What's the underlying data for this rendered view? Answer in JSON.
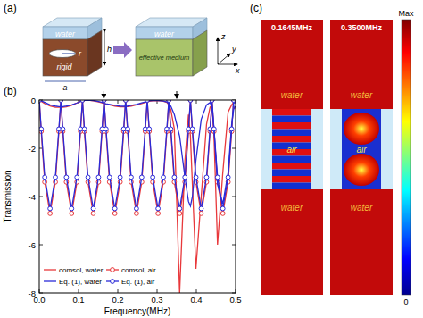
{
  "chart_data": {
    "type": "line",
    "x_label": "Frequency(MHz)",
    "y_label": "Transmission",
    "x": [
      0,
      0.005,
      0.014,
      0.0275,
      0.041,
      0.05,
      0.055,
      0.06,
      0.069,
      0.0825,
      0.096,
      0.105,
      0.11,
      0.115,
      0.124,
      0.1375,
      0.151,
      0.16,
      0.165,
      0.17,
      0.179,
      0.1925,
      0.206,
      0.215,
      0.22,
      0.225,
      0.234,
      0.2475,
      0.261,
      0.27,
      0.275,
      0.28,
      0.289,
      0.3025,
      0.316,
      0.325,
      0.33,
      0.335,
      0.344,
      0.3575,
      0.371,
      0.38,
      0.385,
      0.39,
      0.399,
      0.4125,
      0.426,
      0.435,
      0.44,
      0.445,
      0.454,
      0.4675,
      0.481,
      0.49,
      0.495,
      0.5
    ],
    "series": [
      {
        "name": "comsol, water",
        "color": "#e8383b",
        "line_style": "solid",
        "marker": "none",
        "values": [
          0,
          -0.05,
          -0.15,
          -0.25,
          -0.3,
          -0.3,
          -0.3,
          -0.3,
          -0.28,
          -0.22,
          -0.12,
          -0.05,
          -0.02,
          0,
          0,
          -0.03,
          -0.08,
          -0.12,
          -0.15,
          -0.17,
          -0.2,
          -0.25,
          -0.28,
          -0.28,
          -0.28,
          -0.27,
          -0.25,
          -0.2,
          -0.14,
          -0.1,
          -0.08,
          -0.05,
          -0.03,
          -0.02,
          -0.05,
          -0.1,
          -0.2,
          -0.4,
          -1.2,
          -8,
          -2.5,
          -0.6,
          -1.5,
          -3.5,
          -7,
          -4,
          -1,
          -0.3,
          -0.2,
          -1.5,
          -6,
          -3,
          -0.5,
          -0.2,
          -0.1,
          -0.1
        ]
      },
      {
        "name": "comsol, air",
        "color": "#e8383b",
        "line_style": "solid",
        "marker": "circle",
        "values": [
          0,
          -1.3,
          -3.4,
          -4.7,
          -3.4,
          -1.3,
          0,
          -1.3,
          -3.4,
          -4.7,
          -3.4,
          -1.3,
          0,
          -1.3,
          -3.4,
          -4.7,
          -3.4,
          -1.3,
          0,
          -1.3,
          -3.4,
          -4.7,
          -3.4,
          -1.3,
          0,
          -1.3,
          -3.4,
          -4.7,
          -3.4,
          -1.3,
          0,
          -1.3,
          -3.4,
          -4.7,
          -3.4,
          -1.3,
          0,
          -1.3,
          -3.4,
          -4.7,
          -3.4,
          -1.3,
          0,
          -1.3,
          -3.4,
          -4.7,
          -3.4,
          -1.3,
          0,
          -1.3,
          -3.4,
          -4.7,
          -3.4,
          -1.3,
          0,
          -0.25
        ]
      },
      {
        "name": "Eq. (1), water",
        "color": "#2a2ad8",
        "line_style": "solid",
        "marker": "none",
        "values": [
          0,
          -0.03,
          -0.1,
          -0.2,
          -0.25,
          -0.27,
          -0.27,
          -0.27,
          -0.25,
          -0.2,
          -0.12,
          -0.06,
          -0.03,
          -0.01,
          0,
          -0.02,
          -0.06,
          -0.1,
          -0.13,
          -0.15,
          -0.18,
          -0.22,
          -0.25,
          -0.26,
          -0.26,
          -0.25,
          -0.22,
          -0.18,
          -0.12,
          -0.08,
          -0.05,
          -0.03,
          -0.02,
          -0.02,
          -0.04,
          -0.08,
          -0.15,
          -0.25,
          -0.6,
          -1.5,
          -3.2,
          -4.2,
          -4.4,
          -4,
          -2.5,
          -0.8,
          -0.2,
          -0.1,
          -0.3,
          -1.2,
          -3.5,
          -4.3,
          -3,
          -1,
          -0.4,
          -0.2
        ]
      },
      {
        "name": "Eq. (1), air",
        "color": "#2a2ad8",
        "line_style": "solid",
        "marker": "circle",
        "values": [
          0,
          -1.2,
          -3.2,
          -4.5,
          -3.2,
          -1.2,
          0,
          -1.2,
          -3.2,
          -4.5,
          -3.2,
          -1.2,
          0,
          -1.2,
          -3.2,
          -4.5,
          -3.2,
          -1.2,
          0,
          -1.2,
          -3.2,
          -4.5,
          -3.2,
          -1.2,
          0,
          -1.2,
          -3.2,
          -4.5,
          -3.2,
          -1.2,
          0,
          -1.2,
          -3.2,
          -4.5,
          -3.2,
          -1.2,
          0,
          -1.2,
          -3.2,
          -4.5,
          -3.2,
          -1.2,
          0,
          -1.2,
          -3.2,
          -4.5,
          -3.2,
          -1.2,
          0,
          -1.2,
          -3.2,
          -4.5,
          -3.2,
          -1.2,
          0,
          -0.2
        ]
      }
    ],
    "xlim": [
      0,
      0.5
    ],
    "xticks": [
      {
        "value": 0,
        "label": "0.0"
      },
      0.1,
      0.2,
      0.3,
      0.4,
      0.5
    ],
    "ylim": [
      -8,
      0
    ],
    "yticks": [
      0,
      -2,
      -4,
      -6,
      -8
    ],
    "legend": "lower left"
  },
  "panel_a": {
    "label": "(a)",
    "cells": [
      {
        "top": "water",
        "body": "rigid"
      },
      {
        "top": "water",
        "body": "effective medium"
      }
    ],
    "dimensions": [
      "a",
      "h",
      "r"
    ],
    "axes": [
      "z",
      "y",
      "x"
    ]
  },
  "panel_b": {
    "label": "(b)"
  },
  "panel_c": {
    "label": "(c)",
    "fields": [
      {
        "frequency": 0.1645,
        "label": "0.1645MHz",
        "top": "water",
        "middle": "air",
        "bottom": "water"
      },
      {
        "frequency": 0.35,
        "label": "0.3500MHz",
        "top": "water",
        "middle": "air",
        "bottom": "water"
      }
    ],
    "colorbar": {
      "top": "Max",
      "bottom": 0
    }
  }
}
